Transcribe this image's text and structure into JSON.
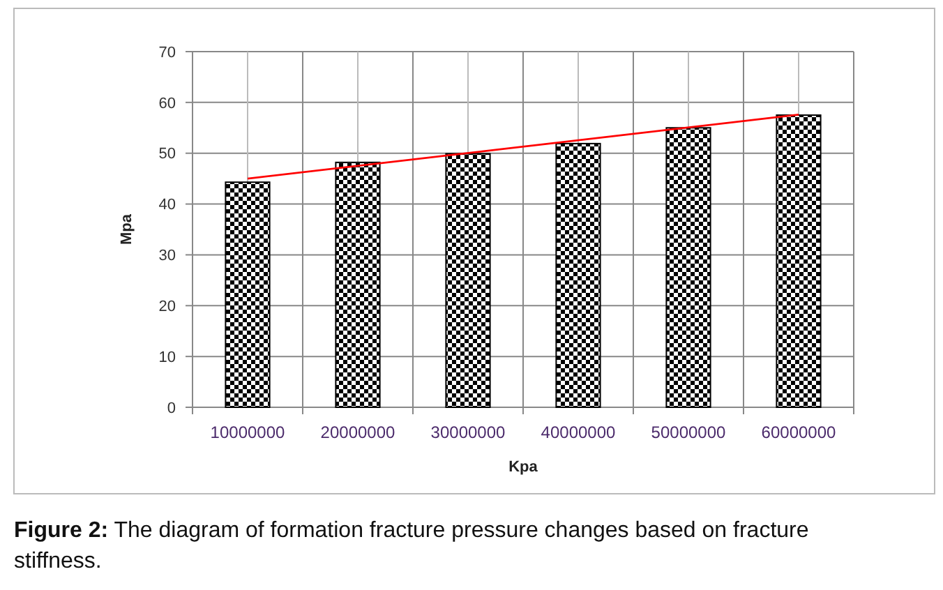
{
  "chart_data": {
    "type": "bar",
    "xlabel": "Kpa",
    "ylabel": "Mpa",
    "categories": [
      "10000000",
      "20000000",
      "30000000",
      "40000000",
      "50000000",
      "60000000"
    ],
    "series": [
      {
        "color": "#000000",
        "values": [
          44.3,
          48.2,
          49.9,
          51.9,
          55.0,
          57.5
        ]
      },
      {
        "type": "line",
        "color": "#ff0000",
        "x": [
          "10000000",
          "60000000"
        ],
        "values": [
          45.0,
          57.6
        ]
      }
    ],
    "ylim": [
      0,
      70
    ],
    "yticks": [
      0,
      10,
      20,
      30,
      40,
      50,
      60,
      70
    ],
    "grid": true,
    "marker": "none",
    "annotations": [
      "Figure 2: The diagram of formation fracture pressure changes based on fracture stiffness."
    ]
  }
}
